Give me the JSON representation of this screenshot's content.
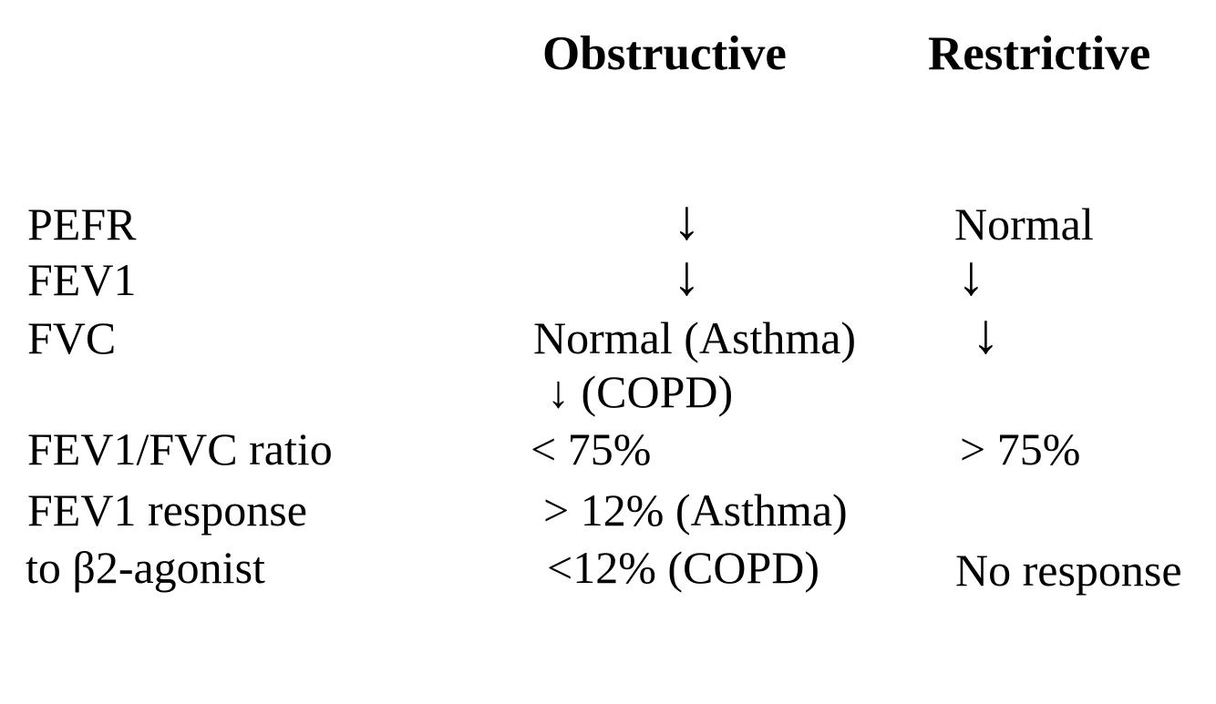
{
  "page": {
    "background_color": "#ffffff",
    "text_color": "#000000"
  },
  "table": {
    "column_headers": {
      "obstructive": "Obstructive",
      "restrictive": "Restrictive"
    },
    "down_arrow_glyph": "↓",
    "rows": [
      {
        "label": "PEFR",
        "obstructive": "↓",
        "restrictive": "Normal"
      },
      {
        "label": "FEV1",
        "obstructive": "↓",
        "restrictive": "↓"
      },
      {
        "label": "FVC",
        "obstructive": "Normal (Asthma)",
        "restrictive": "↓"
      },
      {
        "label": "",
        "obstructive": "↓ (COPD)",
        "restrictive": ""
      },
      {
        "label": "FEV1/FVC ratio",
        "obstructive": "< 75%",
        "restrictive": "> 75%"
      },
      {
        "label": "FEV1 response",
        "obstructive": "> 12% (Asthma)",
        "restrictive": ""
      },
      {
        "label": "to β2-agonist",
        "obstructive": "<12% (COPD)",
        "restrictive": "No response"
      }
    ]
  }
}
